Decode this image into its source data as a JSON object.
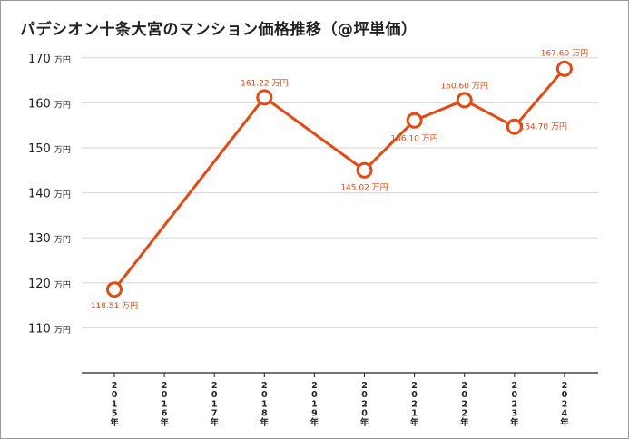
{
  "chart_data": {
    "type": "line",
    "title": "パデシオン十条大宮のマンション価格推移（@坪単価）",
    "unit": "万円",
    "categories": [
      "2015年",
      "2016年",
      "2017年",
      "2018年",
      "2019年",
      "2020年",
      "2021年",
      "2022年",
      "2023年",
      "2024年"
    ],
    "yticks": [
      110,
      120,
      130,
      140,
      150,
      160,
      170
    ],
    "ylim": [
      100,
      170
    ],
    "grid": true,
    "series": [
      {
        "color": "#e8470f",
        "points": [
          {
            "category": "2015年",
            "value": 118.51,
            "label": "118.51 万円"
          },
          {
            "category": "2018年",
            "value": 161.22,
            "label": "161.22 万円"
          },
          {
            "category": "2020年",
            "value": 145.02,
            "label": "145.02 万円"
          },
          {
            "category": "2021年",
            "value": 156.1,
            "label": "156.10 万円"
          },
          {
            "category": "2022年",
            "value": 160.6,
            "label": "160.60 万円"
          },
          {
            "category": "2023年",
            "value": 154.7,
            "label": "154.70 万円"
          },
          {
            "category": "2024年",
            "value": 167.6,
            "label": "167.60 万円"
          }
        ]
      }
    ]
  }
}
